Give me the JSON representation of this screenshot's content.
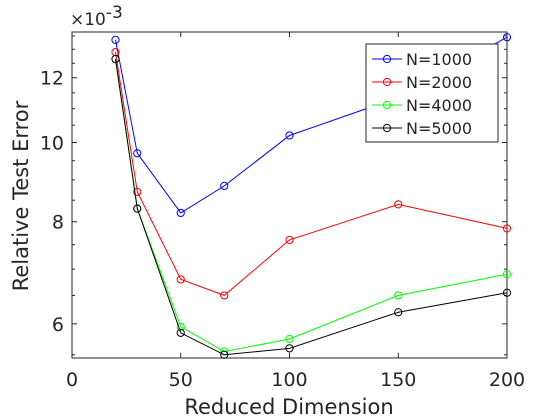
{
  "chart_data": {
    "type": "line",
    "xlabel": "Reduced Dimension",
    "ylabel": "Relative Test Error",
    "y_scale": "log",
    "y_exponent_label": "×10",
    "y_exponent_power": "-3",
    "xlim": [
      0,
      200
    ],
    "ylim": [
      0.00545,
      0.01365
    ],
    "xticks": [
      0,
      50,
      100,
      150,
      200
    ],
    "xtick_labels": [
      "0",
      "50",
      "100",
      "150",
      "200"
    ],
    "yticks": [
      0.006,
      0.008,
      0.01,
      0.012
    ],
    "ytick_labels": [
      "6",
      "8",
      "10",
      "12"
    ],
    "grid": false,
    "legend_position": "top-right",
    "marker": "circle",
    "x": [
      20,
      30,
      50,
      70,
      100,
      150,
      200
    ],
    "series": [
      {
        "name": "N=1000",
        "color": "#0000ff",
        "values": [
          0.01335,
          0.0097,
          0.0082,
          0.00885,
          0.0102,
          0.01135,
          0.01345
        ]
      },
      {
        "name": "N=2000",
        "color": "#ff0000",
        "values": [
          0.0129,
          0.0087,
          0.0068,
          0.0065,
          0.0076,
          0.0084,
          0.00785
        ]
      },
      {
        "name": "N=4000",
        "color": "#00ff00",
        "values": [
          0.01265,
          0.0083,
          0.00595,
          0.00555,
          0.00575,
          0.0065,
          0.0069
        ]
      },
      {
        "name": "N=5000",
        "color": "#000000",
        "values": [
          0.01265,
          0.0083,
          0.00585,
          0.0055,
          0.0056,
          0.0062,
          0.00655
        ]
      }
    ]
  }
}
